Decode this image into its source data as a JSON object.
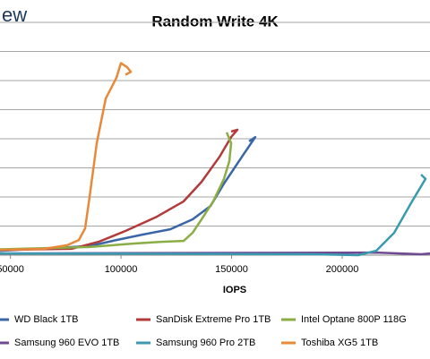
{
  "logo": "ew",
  "chart_data": {
    "type": "line",
    "title": "Random Write 4K",
    "x_label": "IOPS",
    "xlim": [
      45300,
      239700
    ],
    "xticks": [
      50000,
      100000,
      150000,
      200000
    ],
    "ylim": [
      0,
      8
    ],
    "grid_lines": [
      1,
      2,
      3,
      4,
      5,
      6,
      7,
      8
    ],
    "series": [
      {
        "name": "WD Black 1TB",
        "color": "#3a66a8",
        "x": [
          45300,
          85800,
          97950,
          110100,
          122250,
          132375,
          140475,
          146550,
          154650,
          160725,
          157890
        ],
        "values": [
          0.15,
          0.31,
          0.52,
          0.71,
          0.89,
          1.23,
          1.69,
          2.46,
          3.38,
          4.06,
          3.91
        ]
      },
      {
        "name": "SanDisk Extreme Pro 1TB",
        "color": "#b23a3a",
        "x": [
          45300,
          77700,
          89850,
          102000,
          116175,
          128325,
          136425,
          144525,
          149790,
          152625,
          149790
        ],
        "values": [
          0.18,
          0.22,
          0.46,
          0.83,
          1.32,
          1.85,
          2.52,
          3.38,
          4.06,
          4.31,
          4.25
        ]
      },
      {
        "name": "Intel Optane 800P 118G",
        "color": "#8aae45",
        "x": [
          45300,
          85800,
          106050,
          118200,
          128325,
          132375,
          136425,
          141690,
          146550,
          148980,
          149790,
          147765
        ],
        "values": [
          0.2,
          0.28,
          0.4,
          0.46,
          0.49,
          0.77,
          1.23,
          1.85,
          2.62,
          3.23,
          3.85,
          4.22
        ]
      },
      {
        "name": "Samsung 960 EVO 1TB",
        "color": "#6f4a93",
        "x": [
          45300,
          215400,
          235650,
          239700
        ],
        "values": [
          0.06,
          0.09,
          0.03,
          0.06
        ]
      },
      {
        "name": "Samsung 960 Pro 2TB",
        "color": "#3a9bb0",
        "x": [
          45300,
          187050,
          207300,
          215400,
          223500,
          231600,
          237675,
          235650
        ],
        "values": [
          0.06,
          0.03,
          0,
          0.15,
          0.77,
          1.85,
          2.62,
          2.77
        ]
      },
      {
        "name": "Toshiba XG5 1TB",
        "color": "#e8893a",
        "x": [
          45300,
          65550,
          75675,
          80940,
          83775,
          85800,
          89040,
          93090,
          97950,
          99975,
          102810,
          104430,
          102000
        ],
        "values": [
          0.18,
          0.22,
          0.34,
          0.52,
          0.92,
          2.0,
          3.85,
          5.38,
          6.1,
          6.6,
          6.46,
          6.3,
          6.2
        ]
      }
    ]
  }
}
